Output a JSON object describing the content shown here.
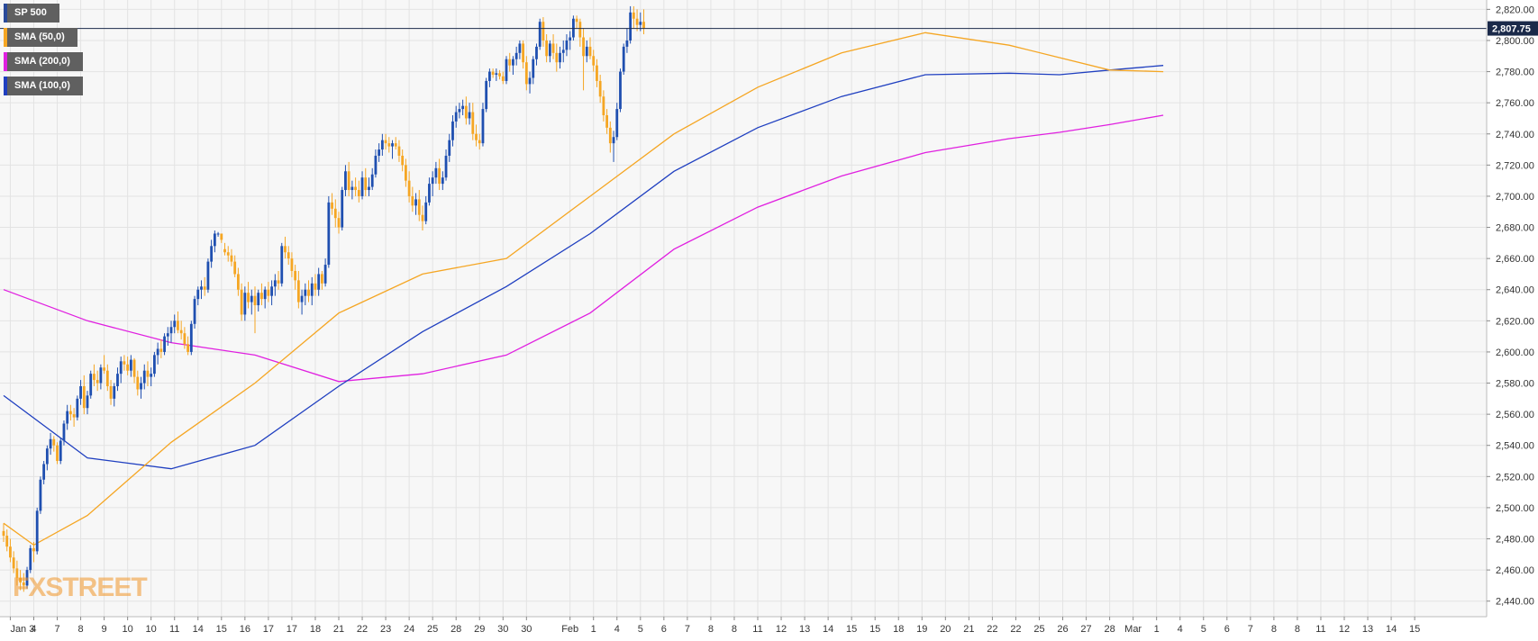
{
  "colors": {
    "bull": "#1f4fb0",
    "bear": "#f5a623",
    "sma50": "#f5a623",
    "sma100": "#1f3fc0",
    "sma200": "#e020e0",
    "background": "#f7f7f7",
    "grid": "#e3e3e3",
    "price_line": "#1b2a4a"
  },
  "legend": [
    {
      "label": "SP 500",
      "color": "#2a4a9a"
    },
    {
      "label": "SMA (50,0)",
      "color": "#f5a623"
    },
    {
      "label": "SMA (200,0)",
      "color": "#e020e0"
    },
    {
      "label": "SMA (100,0)",
      "color": "#1f3fc0"
    }
  ],
  "watermark": "FXSTREET",
  "chart_data": {
    "type": "candlestick",
    "timeframe": "4h",
    "ylim": [
      2430,
      2826
    ],
    "y_ticks": [
      "2,440.00",
      "2,460.00",
      "2,480.00",
      "2,500.00",
      "2,520.00",
      "2,540.00",
      "2,560.00",
      "2,580.00",
      "2,600.00",
      "2,620.00",
      "2,640.00",
      "2,660.00",
      "2,680.00",
      "2,700.00",
      "2,720.00",
      "2,740.00",
      "2,760.00",
      "2,780.00",
      "2,800.00",
      "2,820.00"
    ],
    "last_price": 2807.75,
    "last_price_label": "2,807.75",
    "x_labels": [
      "Jan 3",
      "4",
      "7",
      "8",
      "9",
      "10",
      "10",
      "11",
      "14",
      "15",
      "16",
      "17",
      "17",
      "18",
      "21",
      "22",
      "23",
      "24",
      "25",
      "28",
      "29",
      "30",
      "30",
      "Feb",
      "1",
      "4",
      "5",
      "6",
      "7",
      "8",
      "8",
      "11",
      "12",
      "13",
      "14",
      "15",
      "15",
      "18",
      "19",
      "20",
      "21",
      "22",
      "22",
      "25",
      "26",
      "27",
      "28",
      "Mar",
      "1",
      "4",
      "5",
      "6",
      "7",
      "8",
      "8",
      "11",
      "12",
      "13",
      "14",
      "15"
    ],
    "x_label_slots": [
      2,
      9,
      16,
      23,
      30,
      37,
      44,
      51,
      58,
      65,
      72,
      79,
      86,
      93,
      100,
      107,
      114,
      121,
      128,
      135,
      142,
      149,
      156,
      169,
      176,
      183,
      190,
      197,
      204,
      211,
      218,
      225,
      232,
      239,
      246,
      253,
      260,
      267,
      274,
      281,
      288,
      295,
      302,
      309,
      316,
      323,
      330,
      337,
      344,
      351,
      358,
      365,
      372,
      379,
      386,
      393,
      400,
      407,
      414,
      421
    ],
    "ohlc": [
      [
        2485,
        2490,
        2478,
        2482
      ],
      [
        2482,
        2486,
        2472,
        2475
      ],
      [
        2475,
        2480,
        2465,
        2468
      ],
      [
        2468,
        2472,
        2458,
        2461
      ],
      [
        2461,
        2466,
        2450,
        2455
      ],
      [
        2455,
        2460,
        2447,
        2452
      ],
      [
        2452,
        2458,
        2446,
        2450
      ],
      [
        2450,
        2462,
        2448,
        2460
      ],
      [
        2460,
        2476,
        2458,
        2474
      ],
      [
        2474,
        2478,
        2465,
        2472
      ],
      [
        2472,
        2500,
        2470,
        2498
      ],
      [
        2498,
        2520,
        2496,
        2518
      ],
      [
        2518,
        2530,
        2515,
        2528
      ],
      [
        2528,
        2540,
        2524,
        2538
      ],
      [
        2538,
        2548,
        2534,
        2544
      ],
      [
        2544,
        2546,
        2536,
        2540
      ],
      [
        2540,
        2542,
        2528,
        2530
      ],
      [
        2530,
        2545,
        2528,
        2543
      ],
      [
        2543,
        2556,
        2540,
        2554
      ],
      [
        2554,
        2566,
        2550,
        2562
      ],
      [
        2562,
        2566,
        2556,
        2560
      ],
      [
        2560,
        2564,
        2552,
        2558
      ],
      [
        2558,
        2572,
        2556,
        2570
      ],
      [
        2570,
        2582,
        2566,
        2578
      ],
      [
        2578,
        2585,
        2560,
        2564
      ],
      [
        2564,
        2575,
        2560,
        2572
      ],
      [
        2572,
        2588,
        2570,
        2586
      ],
      [
        2586,
        2592,
        2578,
        2582
      ],
      [
        2582,
        2588,
        2575,
        2580
      ],
      [
        2580,
        2592,
        2576,
        2590
      ],
      [
        2590,
        2598,
        2586,
        2588
      ],
      [
        2588,
        2592,
        2575,
        2578
      ],
      [
        2578,
        2582,
        2566,
        2570
      ],
      [
        2570,
        2580,
        2565,
        2578
      ],
      [
        2578,
        2590,
        2575,
        2586
      ],
      [
        2586,
        2597,
        2580,
        2594
      ],
      [
        2594,
        2598,
        2588,
        2592
      ],
      [
        2592,
        2597,
        2585,
        2588
      ],
      [
        2588,
        2598,
        2584,
        2595
      ],
      [
        2595,
        2596,
        2580,
        2584
      ],
      [
        2584,
        2588,
        2572,
        2576
      ],
      [
        2576,
        2584,
        2570,
        2580
      ],
      [
        2580,
        2592,
        2576,
        2588
      ],
      [
        2588,
        2594,
        2578,
        2584
      ],
      [
        2584,
        2590,
        2578,
        2586
      ],
      [
        2586,
        2600,
        2584,
        2598
      ],
      [
        2598,
        2606,
        2592,
        2602
      ],
      [
        2602,
        2608,
        2596,
        2600
      ],
      [
        2600,
        2612,
        2598,
        2610
      ],
      [
        2610,
        2616,
        2604,
        2612
      ],
      [
        2612,
        2620,
        2606,
        2616
      ],
      [
        2616,
        2624,
        2612,
        2620
      ],
      [
        2620,
        2626,
        2612,
        2614
      ],
      [
        2614,
        2620,
        2608,
        2612
      ],
      [
        2612,
        2616,
        2602,
        2605
      ],
      [
        2605,
        2610,
        2598,
        2600
      ],
      [
        2600,
        2620,
        2598,
        2618
      ],
      [
        2618,
        2636,
        2615,
        2634
      ],
      [
        2634,
        2642,
        2630,
        2640
      ],
      [
        2640,
        2646,
        2634,
        2642
      ],
      [
        2642,
        2648,
        2636,
        2640
      ],
      [
        2640,
        2660,
        2638,
        2658
      ],
      [
        2658,
        2672,
        2654,
        2668
      ],
      [
        2668,
        2678,
        2664,
        2676
      ],
      [
        2676,
        2677,
        2674,
        2676
      ],
      [
        2676,
        2676,
        2670,
        2672
      ],
      [
        2666,
        2670,
        2662,
        2664
      ],
      [
        2664,
        2668,
        2658,
        2662
      ],
      [
        2662,
        2666,
        2655,
        2658
      ],
      [
        2658,
        2662,
        2648,
        2650
      ],
      [
        2650,
        2654,
        2636,
        2640
      ],
      [
        2640,
        2644,
        2620,
        2624
      ],
      [
        2624,
        2642,
        2620,
        2638
      ],
      [
        2638,
        2645,
        2628,
        2632
      ],
      [
        2632,
        2640,
        2624,
        2636
      ],
      [
        2636,
        2642,
        2612,
        2630
      ],
      [
        2630,
        2640,
        2626,
        2638
      ],
      [
        2638,
        2644,
        2630,
        2634
      ],
      [
        2634,
        2642,
        2628,
        2640
      ],
      [
        2640,
        2645,
        2632,
        2636
      ],
      [
        2636,
        2646,
        2630,
        2642
      ],
      [
        2642,
        2650,
        2636,
        2646
      ],
      [
        2646,
        2652,
        2640,
        2644
      ],
      [
        2644,
        2670,
        2642,
        2668
      ],
      [
        2668,
        2674,
        2660,
        2664
      ],
      [
        2664,
        2668,
        2656,
        2660
      ],
      [
        2660,
        2664,
        2648,
        2652
      ],
      [
        2652,
        2656,
        2640,
        2646
      ],
      [
        2646,
        2652,
        2628,
        2632
      ],
      [
        2632,
        2640,
        2624,
        2636
      ],
      [
        2636,
        2644,
        2630,
        2640
      ],
      [
        2640,
        2646,
        2632,
        2636
      ],
      [
        2636,
        2648,
        2630,
        2644
      ],
      [
        2644,
        2650,
        2636,
        2640
      ],
      [
        2640,
        2654,
        2636,
        2650
      ],
      [
        2650,
        2652,
        2640,
        2644
      ],
      [
        2644,
        2660,
        2642,
        2656
      ],
      [
        2656,
        2700,
        2654,
        2696
      ],
      [
        2696,
        2702,
        2688,
        2692
      ],
      [
        2692,
        2698,
        2680,
        2686
      ],
      [
        2686,
        2690,
        2676,
        2680
      ],
      [
        2680,
        2706,
        2678,
        2704
      ],
      [
        2704,
        2720,
        2700,
        2716
      ],
      [
        2716,
        2722,
        2700,
        2704
      ],
      [
        2704,
        2710,
        2698,
        2706
      ],
      [
        2706,
        2712,
        2700,
        2704
      ],
      [
        2704,
        2710,
        2696,
        2700
      ],
      [
        2700,
        2716,
        2698,
        2712
      ],
      [
        2712,
        2718,
        2700,
        2704
      ],
      [
        2704,
        2712,
        2700,
        2706
      ],
      [
        2706,
        2718,
        2704,
        2714
      ],
      [
        2714,
        2730,
        2712,
        2726
      ],
      [
        2726,
        2734,
        2722,
        2730
      ],
      [
        2730,
        2740,
        2726,
        2736
      ],
      [
        2736,
        2740,
        2730,
        2734
      ],
      [
        2734,
        2738,
        2728,
        2732
      ],
      [
        2732,
        2736,
        2724,
        2734
      ],
      [
        2734,
        2738,
        2730,
        2732
      ],
      [
        2732,
        2736,
        2722,
        2726
      ],
      [
        2726,
        2730,
        2716,
        2720
      ],
      [
        2720,
        2724,
        2706,
        2710
      ],
      [
        2710,
        2716,
        2696,
        2700
      ],
      [
        2700,
        2706,
        2690,
        2694
      ],
      [
        2694,
        2702,
        2688,
        2698
      ],
      [
        2698,
        2704,
        2684,
        2688
      ],
      [
        2688,
        2694,
        2678,
        2684
      ],
      [
        2684,
        2700,
        2682,
        2696
      ],
      [
        2696,
        2712,
        2694,
        2708
      ],
      [
        2708,
        2716,
        2700,
        2712
      ],
      [
        2712,
        2722,
        2708,
        2718
      ],
      [
        2718,
        2724,
        2704,
        2708
      ],
      [
        2708,
        2716,
        2704,
        2712
      ],
      [
        2712,
        2730,
        2710,
        2726
      ],
      [
        2726,
        2740,
        2722,
        2736
      ],
      [
        2736,
        2752,
        2732,
        2748
      ],
      [
        2748,
        2758,
        2744,
        2754
      ],
      [
        2754,
        2760,
        2750,
        2756
      ],
      [
        2756,
        2762,
        2752,
        2758
      ],
      [
        2758,
        2764,
        2746,
        2750
      ],
      [
        2750,
        2760,
        2746,
        2754
      ],
      [
        2754,
        2760,
        2736,
        2740
      ],
      [
        2740,
        2746,
        2732,
        2736
      ],
      [
        2736,
        2740,
        2730,
        2734
      ],
      [
        2734,
        2760,
        2732,
        2756
      ],
      [
        2756,
        2776,
        2754,
        2774
      ],
      [
        2774,
        2782,
        2770,
        2780
      ],
      [
        2780,
        2782,
        2776,
        2778
      ],
      [
        2778,
        2782,
        2774,
        2779
      ],
      [
        2779,
        2781,
        2775,
        2777
      ],
      [
        2777,
        2780,
        2772,
        2774
      ],
      [
        2774,
        2790,
        2772,
        2788
      ],
      [
        2788,
        2792,
        2780,
        2784
      ],
      [
        2784,
        2790,
        2778,
        2788
      ],
      [
        2788,
        2796,
        2784,
        2792
      ],
      [
        2792,
        2800,
        2788,
        2798
      ],
      [
        2798,
        2800,
        2782,
        2786
      ],
      [
        2786,
        2790,
        2768,
        2772
      ],
      [
        2772,
        2780,
        2766,
        2776
      ],
      [
        2776,
        2790,
        2772,
        2788
      ],
      [
        2788,
        2798,
        2784,
        2796
      ],
      [
        2796,
        2814,
        2794,
        2812
      ],
      [
        2812,
        2815,
        2796,
        2800
      ],
      [
        2800,
        2804,
        2786,
        2790
      ],
      [
        2790,
        2800,
        2786,
        2798
      ],
      [
        2798,
        2804,
        2788,
        2792
      ],
      [
        2792,
        2798,
        2780,
        2786
      ],
      [
        2786,
        2796,
        2782,
        2792
      ],
      [
        2792,
        2800,
        2786,
        2794
      ],
      [
        2794,
        2804,
        2790,
        2800
      ],
      [
        2800,
        2806,
        2794,
        2802
      ],
      [
        2802,
        2816,
        2800,
        2814
      ],
      [
        2814,
        2816,
        2808,
        2812
      ],
      [
        2812,
        2814,
        2796,
        2802
      ],
      [
        2802,
        2808,
        2768,
        2790
      ],
      [
        2790,
        2800,
        2786,
        2796
      ],
      [
        2796,
        2802,
        2788,
        2790
      ],
      [
        2790,
        2794,
        2780,
        2784
      ],
      [
        2784,
        2788,
        2770,
        2774
      ],
      [
        2774,
        2778,
        2760,
        2764
      ],
      [
        2764,
        2768,
        2748,
        2752
      ],
      [
        2752,
        2756,
        2740,
        2744
      ],
      [
        2744,
        2748,
        2728,
        2734
      ],
      [
        2734,
        2742,
        2722,
        2738
      ],
      [
        2738,
        2760,
        2736,
        2756
      ],
      [
        2756,
        2782,
        2754,
        2780
      ],
      [
        2780,
        2798,
        2778,
        2796
      ],
      [
        2796,
        2808,
        2792,
        2800
      ],
      [
        2800,
        2822,
        2798,
        2818
      ],
      [
        2818,
        2822,
        2808,
        2814
      ],
      [
        2814,
        2820,
        2806,
        2810
      ],
      [
        2810,
        2818,
        2806,
        2812
      ],
      [
        2812,
        2820,
        2804,
        2808
      ]
    ],
    "sma50": [
      [
        0,
        2490
      ],
      [
        9,
        2476
      ],
      [
        25,
        2495
      ],
      [
        50,
        2542
      ],
      [
        75,
        2580
      ],
      [
        100,
        2625
      ],
      [
        125,
        2650
      ],
      [
        150,
        2660
      ],
      [
        175,
        2700
      ],
      [
        200,
        2740
      ],
      [
        225,
        2770
      ],
      [
        250,
        2792
      ],
      [
        275,
        2805
      ],
      [
        300,
        2797
      ],
      [
        315,
        2789
      ],
      [
        330,
        2781
      ],
      [
        346,
        2780
      ]
    ],
    "sma100": [
      [
        0,
        2572
      ],
      [
        25,
        2532
      ],
      [
        50,
        2525
      ],
      [
        75,
        2540
      ],
      [
        100,
        2578
      ],
      [
        125,
        2613
      ],
      [
        150,
        2642
      ],
      [
        175,
        2676
      ],
      [
        200,
        2716
      ],
      [
        225,
        2744
      ],
      [
        250,
        2764
      ],
      [
        275,
        2778
      ],
      [
        300,
        2779
      ],
      [
        315,
        2778
      ],
      [
        330,
        2781
      ],
      [
        346,
        2784
      ]
    ],
    "sma200": [
      [
        0,
        2640
      ],
      [
        25,
        2620
      ],
      [
        50,
        2606
      ],
      [
        75,
        2598
      ],
      [
        100,
        2581
      ],
      [
        125,
        2586
      ],
      [
        150,
        2598
      ],
      [
        175,
        2625
      ],
      [
        200,
        2666
      ],
      [
        225,
        2693
      ],
      [
        250,
        2713
      ],
      [
        275,
        2728
      ],
      [
        300,
        2737
      ],
      [
        315,
        2741
      ],
      [
        330,
        2746
      ],
      [
        346,
        2752
      ]
    ]
  }
}
